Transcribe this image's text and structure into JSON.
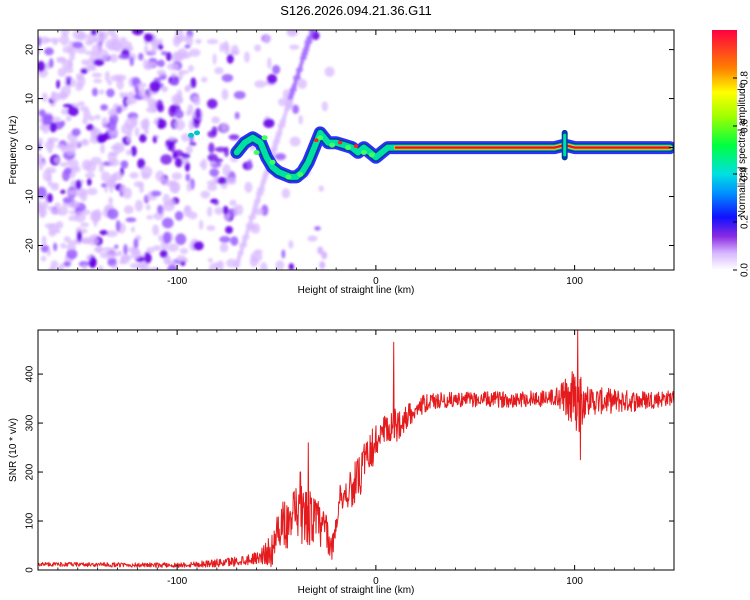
{
  "page_title": "S126.2026.094.21.36.G11",
  "colors": {
    "snr_line": "#e41a1c",
    "ridge_core": "#e8102a",
    "ridge_outer": "#0050c8",
    "ridge_mid": "#00e0a0",
    "blob_light": "#d8b8ff",
    "blob_mid": "#9a5cff",
    "blob_dark": "#6a00e8"
  },
  "chart_data": [
    {
      "type": "heatmap",
      "title": "S126.2026.094.21.36.G11",
      "xlabel": "Height of straight line (km)",
      "ylabel": "Frequency (Hz)",
      "xlim": [
        -170,
        150
      ],
      "ylim": [
        -25,
        24
      ],
      "xticks": [
        -100,
        0,
        100
      ],
      "xtick_labels": [
        "-100",
        "0",
        "100"
      ],
      "yticks": [
        -20,
        -10,
        0,
        10,
        20
      ],
      "ytick_labels": [
        "-20",
        "-10",
        "0",
        "10",
        "20"
      ],
      "colorbar": {
        "label": "Normalized spectral amplitude",
        "range": [
          0,
          1
        ],
        "ticks": [
          0.0,
          0.2,
          0.4,
          0.6,
          0.8
        ],
        "tick_labels": [
          "0.0",
          "0.2",
          "0.4",
          "0.6",
          "0.8"
        ]
      },
      "ridge": {
        "x": [
          -70,
          -66,
          -62,
          -58,
          -55,
          -52,
          -49,
          -46,
          -43,
          -40,
          -37,
          -34,
          -31,
          -28,
          -26,
          -24,
          -20,
          -16,
          -12,
          -9,
          -6,
          -3,
          0,
          3,
          6,
          10,
          20,
          40,
          60,
          80,
          90,
          95,
          100,
          120,
          148
        ],
        "y": [
          -1,
          1,
          2,
          1,
          -2,
          -4,
          -5,
          -5.5,
          -6,
          -6,
          -5,
          -3,
          0,
          3,
          2,
          1,
          1,
          0.5,
          0,
          -1,
          0,
          -1,
          -2,
          -1,
          0,
          0,
          0,
          0,
          0,
          0,
          0,
          0.5,
          0,
          0,
          0
        ]
      }
    },
    {
      "type": "line",
      "title": "",
      "xlabel": "Height of straight line (km)",
      "ylabel": "SNR (10 * v/v)",
      "xlim": [
        -170,
        150
      ],
      "ylim": [
        0,
        490
      ],
      "xticks": [
        -100,
        0,
        100
      ],
      "xtick_labels": [
        "-100",
        "0",
        "100"
      ],
      "yticks": [
        0,
        100,
        200,
        300,
        400
      ],
      "ytick_labels": [
        "0",
        "100",
        "200",
        "300",
        "400"
      ],
      "trend": {
        "x": [
          -170,
          -120,
          -100,
          -80,
          -70,
          -60,
          -52,
          -48,
          -42,
          -38,
          -34,
          -30,
          -25,
          -22,
          -18,
          -15,
          -12,
          -8,
          -5,
          -2,
          0,
          5,
          10,
          15,
          20,
          25,
          30,
          40,
          60,
          80,
          90,
          100,
          110,
          130,
          150
        ],
        "y": [
          12,
          10,
          10,
          14,
          18,
          25,
          40,
          90,
          100,
          110,
          110,
          95,
          80,
          40,
          150,
          155,
          170,
          190,
          220,
          245,
          265,
          280,
          295,
          310,
          330,
          340,
          345,
          348,
          348,
          350,
          352,
          350,
          345,
          345,
          352
        ]
      },
      "noise": {
        "x": [
          -170,
          -100,
          -60,
          -50,
          -40,
          -30,
          -20,
          -15,
          -10,
          0,
          10,
          20,
          40,
          90,
          98,
          102,
          106,
          150
        ],
        "amp": [
          4,
          5,
          12,
          40,
          65,
          55,
          20,
          35,
          45,
          40,
          35,
          20,
          15,
          18,
          55,
          70,
          30,
          15
        ]
      },
      "peaks": [
        {
          "x": 101.5,
          "y": 490
        },
        {
          "x": 99.5,
          "y": 400
        },
        {
          "x": 103,
          "y": 225
        },
        {
          "x": -34,
          "y": 260
        },
        {
          "x": -38,
          "y": 200
        },
        {
          "x": 9,
          "y": 465
        }
      ]
    }
  ]
}
